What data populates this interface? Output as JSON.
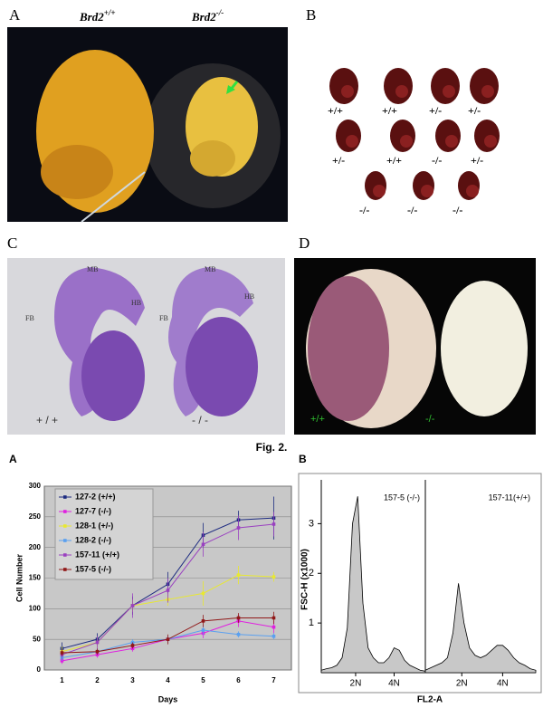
{
  "panels": {
    "A": {
      "letter": "A",
      "labels": [
        {
          "gene": "Brd2",
          "genotype": "+/+"
        },
        {
          "gene": "Brd2",
          "genotype": "-/-"
        }
      ]
    },
    "B": {
      "letter": "B",
      "rows": [
        [
          "+/+",
          "+/+",
          "+/-",
          "+/-"
        ],
        [
          "+/-",
          "+/+",
          "-/-",
          "+/-"
        ],
        [
          "-/-",
          "-/-",
          "-/-"
        ]
      ]
    },
    "C": {
      "letter": "C",
      "left": {
        "regions": [
          "MB",
          "HB",
          "FB"
        ],
        "genotype": "+ / +"
      },
      "right": {
        "regions": [
          "MB",
          "HB",
          "FB"
        ],
        "genotype": "- / -"
      }
    },
    "D": {
      "letter": "D",
      "labels": [
        "+/+",
        "-/-"
      ]
    }
  },
  "caption": "Fig. 2.",
  "chart_data": [
    {
      "type": "line",
      "letter": "A",
      "x_label": "Days",
      "y_label": "Cell Number",
      "categories": [
        "1",
        "2",
        "3",
        "4",
        "5",
        "6",
        "7"
      ],
      "ylim": [
        0,
        300
      ],
      "yticks": [
        0,
        50,
        100,
        150,
        200,
        250,
        300
      ],
      "grid": true,
      "legend": "top-left",
      "series": [
        {
          "name": "127-2 (+/+)",
          "color": "#1c2a80",
          "values": [
            35,
            50,
            105,
            140,
            220,
            245,
            248
          ],
          "errors": [
            10,
            10,
            15,
            20,
            20,
            15,
            35
          ]
        },
        {
          "name": "127-7 (-/-)",
          "color": "#e020e0",
          "values": [
            15,
            25,
            35,
            50,
            60,
            80,
            70
          ],
          "errors": [
            5,
            5,
            5,
            5,
            8,
            10,
            10
          ]
        },
        {
          "name": "128-1 (+/-)",
          "color": "#e8e830",
          "values": [
            30,
            45,
            105,
            115,
            125,
            155,
            152
          ],
          "errors": [
            8,
            8,
            10,
            10,
            20,
            15,
            8
          ]
        },
        {
          "name": "128-2 (-/-)",
          "color": "#5aa0f0",
          "values": [
            20,
            30,
            45,
            50,
            65,
            58,
            55
          ],
          "errors": [
            5,
            5,
            5,
            5,
            8,
            5,
            5
          ]
        },
        {
          "name": "157-11 (+/+)",
          "color": "#9a40c0",
          "values": [
            25,
            45,
            105,
            130,
            205,
            232,
            238
          ],
          "errors": [
            8,
            10,
            20,
            20,
            20,
            20,
            20
          ]
        },
        {
          "name": "157-5 (-/-)",
          "color": "#901818",
          "values": [
            28,
            30,
            40,
            50,
            80,
            85,
            85
          ],
          "errors": [
            5,
            5,
            5,
            8,
            10,
            8,
            10
          ]
        }
      ]
    },
    {
      "type": "area",
      "letter": "B",
      "x_label": "FL2-A",
      "y_label": "FSC-H (x1000)",
      "ylim": [
        0,
        3.7
      ],
      "yticks": [
        1,
        2,
        3
      ],
      "xlim": [
        0,
        100
      ],
      "xticks": [
        {
          "value": 33,
          "label": "2N"
        },
        {
          "value": 70,
          "label": "4N"
        }
      ],
      "color": "#c8c8c8",
      "x": [
        0,
        5,
        10,
        15,
        20,
        25,
        30,
        35,
        40,
        45,
        50,
        55,
        60,
        65,
        70,
        75,
        80,
        85,
        90,
        95,
        100
      ],
      "series": [
        {
          "name": "157-5 (-/-)",
          "values": [
            0.05,
            0.08,
            0.1,
            0.15,
            0.3,
            0.9,
            3.0,
            3.55,
            1.4,
            0.5,
            0.3,
            0.2,
            0.2,
            0.3,
            0.5,
            0.45,
            0.25,
            0.15,
            0.1,
            0.05,
            0.03
          ]
        },
        {
          "name": "157-11(+/+)",
          "values": [
            0.05,
            0.1,
            0.15,
            0.2,
            0.3,
            0.8,
            1.8,
            1.0,
            0.5,
            0.35,
            0.3,
            0.35,
            0.45,
            0.55,
            0.55,
            0.45,
            0.3,
            0.2,
            0.15,
            0.08,
            0.05
          ]
        }
      ]
    }
  ]
}
